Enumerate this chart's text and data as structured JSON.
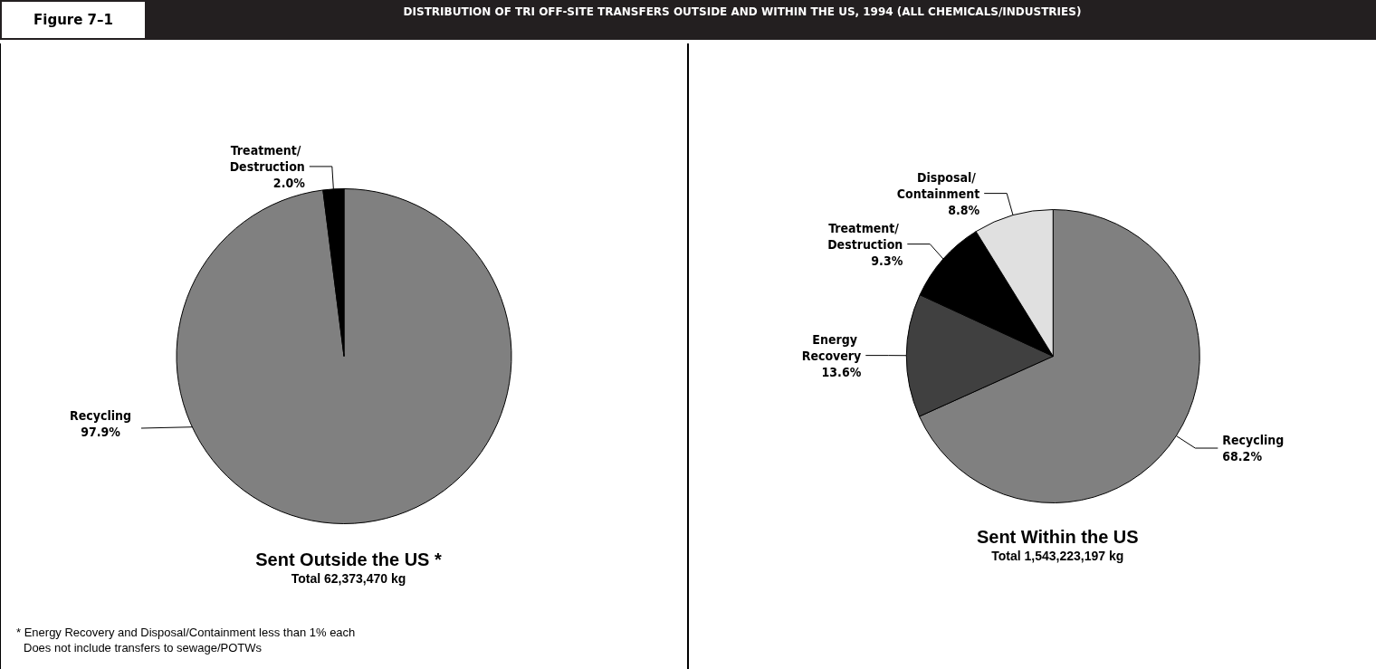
{
  "chart_data": [
    {
      "type": "pie",
      "title": "Sent Outside the US *",
      "subtitle": "Total 62,373,470 kg",
      "categories": [
        "Recycling",
        "Treatment/ Destruction"
      ],
      "values": [
        97.9,
        2.0
      ],
      "colors": [
        "#808080",
        "#000000"
      ],
      "value_labels": [
        "97.9%",
        "2.0%"
      ],
      "annotations": [
        "Figure 7–1",
        "DISTRIBUTION OF TRI OFF-SITE TRANSFERS OUTSIDE AND WITHIN THE US, 1994 (ALL CHEMICALS/INDUSTRIES)",
        "* Energy Recovery and Disposal/Containment less than 1% each",
        "Does not include transfers to sewage/POTWs"
      ],
      "legend": false
    },
    {
      "type": "pie",
      "title": "Sent Within the US",
      "subtitle": "Total 1,543,223,197 kg",
      "categories": [
        "Recycling",
        "Energy Recovery",
        "Treatment/ Destruction",
        "Disposal/ Containment"
      ],
      "values": [
        68.2,
        13.6,
        9.3,
        8.8
      ],
      "colors": [
        "#808080",
        "#404040",
        "#000000",
        "#e0e0e0"
      ],
      "value_labels": [
        "68.2%",
        "13.6%",
        "9.3%",
        "8.8%"
      ],
      "legend": false
    }
  ]
}
